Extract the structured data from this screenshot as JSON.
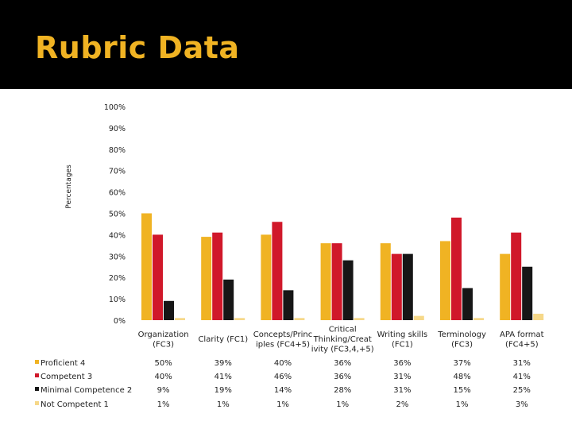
{
  "slide": {
    "title": "Rubric Data"
  },
  "chart_data": {
    "type": "bar",
    "title": "",
    "xlabel": "",
    "ylabel": "Percentages",
    "ylim": [
      0,
      100
    ],
    "yticks": [
      "0%",
      "10%",
      "20%",
      "30%",
      "40%",
      "50%",
      "60%",
      "70%",
      "80%",
      "90%",
      "100%"
    ],
    "grid": false,
    "legend": "left, as data table",
    "categories": [
      [
        "Organization",
        "(FC3)"
      ],
      [
        "Clarity (FC1)"
      ],
      [
        "Concepts/Princ",
        "iples (FC4+5)"
      ],
      [
        "Critical",
        "Thinking/Creat",
        "ivity (FC3,4,+5)"
      ],
      [
        "Writing skills",
        "(FC1)"
      ],
      [
        "Terminology",
        "(FC3)"
      ],
      [
        "APA format",
        "(FC4+5)"
      ]
    ],
    "series": [
      {
        "name": "Proficient 4",
        "color": "#f0b323",
        "values": [
          50,
          39,
          40,
          36,
          36,
          37,
          31
        ],
        "labels": [
          "50%",
          "39%",
          "40%",
          "36%",
          "36%",
          "37%",
          "31%"
        ]
      },
      {
        "name": "Competent 3",
        "color": "#d0182a",
        "values": [
          40,
          41,
          46,
          36,
          31,
          48,
          41
        ],
        "labels": [
          "40%",
          "41%",
          "46%",
          "36%",
          "31%",
          "48%",
          "41%"
        ]
      },
      {
        "name": "Minimal Competence 2",
        "color": "#161616",
        "values": [
          9,
          19,
          14,
          28,
          31,
          15,
          25
        ],
        "labels": [
          "9%",
          "19%",
          "14%",
          "28%",
          "31%",
          "15%",
          "25%"
        ]
      },
      {
        "name": "Not Competent 1",
        "color": "#f6d889",
        "values": [
          1,
          1,
          1,
          1,
          2,
          1,
          3
        ],
        "labels": [
          "1%",
          "1%",
          "1%",
          "1%",
          "2%",
          "1%",
          "3%"
        ]
      }
    ]
  }
}
